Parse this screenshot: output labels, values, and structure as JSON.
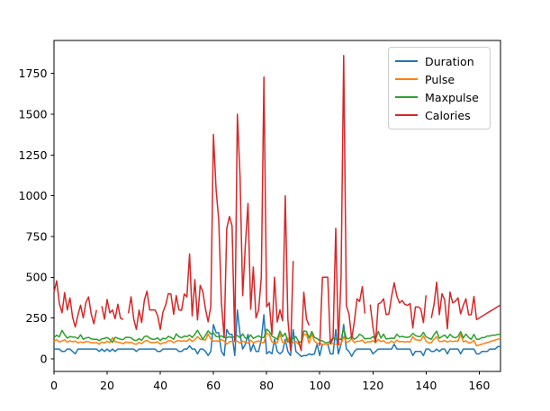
{
  "chart_data": {
    "type": "line",
    "title": "",
    "xlabel": "",
    "ylabel": "",
    "xlim": [
      0,
      168
    ],
    "ylim": [
      -77.3,
      1952.7
    ],
    "xticks": [
      0,
      20,
      40,
      60,
      80,
      100,
      120,
      140,
      160
    ],
    "yticks": [
      0,
      250,
      500,
      750,
      1000,
      1250,
      1500,
      1750
    ],
    "grid": false,
    "legend": {
      "position": "upper right",
      "frame": true,
      "entries": [
        "Duration",
        "Pulse",
        "Maxpulse",
        "Calories"
      ]
    },
    "series": [
      {
        "name": "Duration",
        "color": "#1f77b4",
        "values": [
          60,
          60,
          60,
          45,
          45,
          60,
          60,
          45,
          30,
          60,
          60,
          60,
          60,
          60,
          60,
          60,
          60,
          45,
          60,
          45,
          60,
          45,
          60,
          45,
          60,
          60,
          60,
          60,
          60,
          60,
          60,
          45,
          60,
          60,
          60,
          60,
          60,
          60,
          60,
          45,
          45,
          60,
          60,
          60,
          60,
          60,
          60,
          45,
          45,
          60,
          60,
          80,
          60,
          60,
          30,
          60,
          60,
          45,
          20,
          45,
          210,
          160,
          160,
          45,
          20,
          180,
          150,
          150,
          20,
          300,
          150,
          60,
          90,
          150,
          45,
          90,
          45,
          45,
          120,
          270,
          30,
          45,
          30,
          120,
          45,
          30,
          45,
          120,
          45,
          20,
          180,
          45,
          30,
          15,
          20,
          20,
          30,
          25,
          30,
          90,
          20,
          90,
          90,
          90,
          30,
          30,
          180,
          30,
          90,
          210,
          60,
          45,
          15,
          45,
          60,
          60,
          60,
          60,
          60,
          60,
          30,
          45,
          60,
          60,
          60,
          60,
          60,
          60,
          90,
          60,
          60,
          60,
          60,
          60,
          60,
          20,
          45,
          45,
          45,
          20,
          60,
          60,
          45,
          45,
          60,
          45,
          60,
          60,
          30,
          60,
          60,
          60,
          60,
          30,
          60,
          60,
          60,
          60,
          60,
          30,
          30,
          45,
          45,
          45,
          60,
          60,
          60,
          75,
          75
        ]
      },
      {
        "name": "Pulse",
        "color": "#ff7f0e",
        "values": [
          110,
          117,
          103,
          109,
          117,
          102,
          110,
          104,
          109,
          98,
          103,
          100,
          106,
          104,
          98,
          98,
          100,
          90,
          103,
          97,
          108,
          100,
          130,
          105,
          102,
          100,
          92,
          103,
          100,
          102,
          92,
          90,
          101,
          93,
          107,
          114,
          102,
          100,
          100,
          104,
          90,
          98,
          100,
          111,
          111,
          99,
          109,
          111,
          108,
          111,
          107,
          123,
          106,
          118,
          136,
          121,
          118,
          115,
          153,
          123,
          108,
          110,
          109,
          118,
          110,
          90,
          105,
          107,
          106,
          108,
          97,
          109,
          100,
          97,
          114,
          98,
          105,
          110,
          100,
          100,
          159,
          149,
          103,
          100,
          100,
          151,
          102,
          100,
          129,
          83,
          101,
          107,
          90,
          80,
          150,
          151,
          95,
          152,
          109,
          93,
          95,
          90,
          90,
          90,
          92,
          93,
          90,
          90,
          90,
          137,
          102,
          107,
          124,
          100,
          108,
          108,
          116,
          97,
          105,
          103,
          112,
          100,
          119,
          107,
          111,
          98,
          97,
          109,
          99,
          114,
          104,
          107,
          103,
          106,
          103,
          136,
          117,
          115,
          113,
          141,
          108,
          97,
          100,
          122,
          136,
          106,
          107,
          112,
          103,
          110,
          106,
          109,
          109,
          150,
          105,
          111,
          97,
          100,
          114,
          80,
          85,
          90,
          95,
          100,
          105,
          110,
          115,
          120,
          125
        ]
      },
      {
        "name": "Maxpulse",
        "color": "#2ca02c",
        "values": [
          130,
          145,
          135,
          175,
          148,
          127,
          136,
          134,
          133,
          124,
          147,
          120,
          128,
          132,
          123,
          120,
          120,
          112,
          123,
          125,
          131,
          119,
          101,
          132,
          126,
          120,
          118,
          132,
          132,
          129,
          115,
          112,
          124,
          113,
          136,
          140,
          127,
          120,
          120,
          129,
          112,
          126,
          122,
          138,
          131,
          119,
          153,
          136,
          129,
          139,
          136,
          146,
          130,
          151,
          175,
          146,
          121,
          144,
          172,
          152,
          160,
          137,
          135,
          141,
          130,
          130,
          135,
          130,
          136,
          143,
          129,
          153,
          127,
          127,
          146,
          125,
          134,
          141,
          130,
          131,
          182,
          169,
          139,
          130,
          120,
          170,
          136,
          157,
          103,
          107,
          127,
          137,
          107,
          100,
          171,
          168,
          128,
          168,
          131,
          124,
          112,
          110,
          100,
          100,
          108,
          128,
          120,
          120,
          120,
          184,
          124,
          124,
          139,
          120,
          131,
          151,
          141,
          122,
          125,
          124,
          137,
          120,
          169,
          127,
          151,
          122,
          124,
          127,
          125,
          151,
          134,
          138,
          133,
          132,
          136,
          156,
          143,
          137,
          138,
          162,
          135,
          127,
          120,
          149,
          170,
          126,
          136,
          146,
          127,
          150,
          134,
          129,
          138,
          167,
          128,
          151,
          131,
          120,
          150,
          120,
          120,
          130,
          130,
          140,
          140,
          145,
          145,
          150,
          150
        ]
      },
      {
        "name": "Calories",
        "color": "#d62728",
        "values": [
          409.1,
          479.0,
          340.0,
          282.4,
          406.0,
          300.0,
          374.0,
          253.3,
          195.1,
          269.0,
          329.3,
          250.7,
          345.3,
          379.3,
          275.0,
          215.2,
          300.0,
          null,
          323.0,
          243.0,
          364.2,
          282.0,
          300.0,
          246.0,
          334.5,
          250.0,
          241.0,
          null,
          280.0,
          380.3,
          243.0,
          180.1,
          299.0,
          223.0,
          361.0,
          415.1,
          300.0,
          300.0,
          300.0,
          266.0,
          180.1,
          286.0,
          329.4,
          400.0,
          397.0,
          273.0,
          387.6,
          300.0,
          298.0,
          397.6,
          380.2,
          643.1,
          263.0,
          486.0,
          238.0,
          450.7,
          413.0,
          305.0,
          226.4,
          321.0,
          1376.0,
          1034.4,
          853.0,
          341.0,
          131.4,
          800.4,
          873.4,
          816.0,
          110.4,
          1500.2,
          1115.0,
          387.6,
          700.0,
          953.2,
          304.0,
          563.2,
          251.0,
          300.0,
          500.4,
          1729.0,
          319.2,
          344.0,
          151.1,
          500.0,
          225.3,
          300.1,
          234.0,
          1000.1,
          242.0,
          50.3,
          600.1,
          null,
          105.3,
          50.5,
          408.0,
          243.0,
          205.0,
          null,
          345.0,
          null,
          77.7,
          500.0,
          500.0,
          500.4,
          92.7,
          124.0,
          800.3,
          86.2,
          500.3,
          1860.4,
          325.2,
          275.0,
          124.2,
          225.3,
          367.6,
          351.7,
          443.0,
          277.4,
          null,
          332.7,
          193.9,
          100.7,
          336.7,
          344.9,
          368.5,
          271.0,
          275.3,
          382.0,
          466.4,
          384.0,
          342.5,
          357.5,
          335.0,
          327.5,
          339.0,
          189.0,
          317.7,
          318.0,
          308.0,
          222.4,
          390.0,
          null,
          250.4,
          335.4,
          470.2,
          270.8,
          400.0,
          361.9,
          185.0,
          409.4,
          343.0,
          353.2,
          374.0,
          275.8,
          328.0,
          368.5,
          270.4,
          270.4,
          382.8,
          240.9,
          250.4,
          260.4,
          270.0,
          280.9,
          290.8,
          300.0,
          310.2,
          320.4,
          330.4
        ]
      }
    ]
  }
}
